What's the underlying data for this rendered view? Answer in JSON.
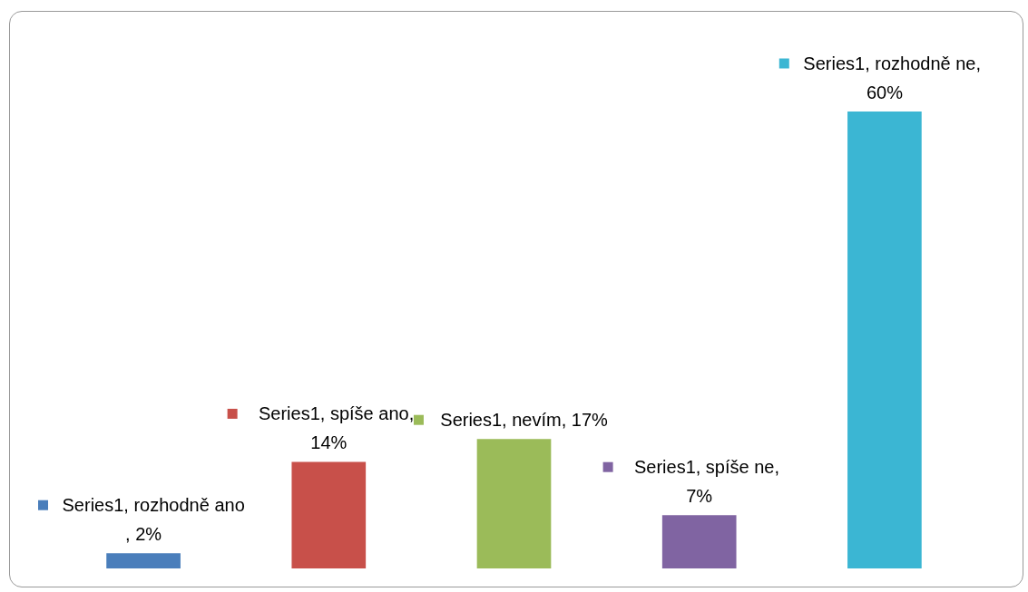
{
  "chart_data": {
    "type": "bar",
    "categories": [
      null,
      null,
      null,
      null,
      null
    ],
    "series": [
      {
        "values": [
          2,
          14,
          17,
          7,
          60
        ],
        "colors": [
          "#4a7ebb",
          "#c8504a",
          "#9bbb59",
          "#8064a2",
          "#3bb6d3"
        ],
        "value_labels": [
          "Series1, rozhodně ano, 2%",
          "Series1, spíše ano, 14%",
          "Series1, nevím, 17%",
          "Series1, spíše ne, 7%",
          "Series1, rozhodně ne, 60%"
        ]
      }
    ],
    "grid": false
  }
}
